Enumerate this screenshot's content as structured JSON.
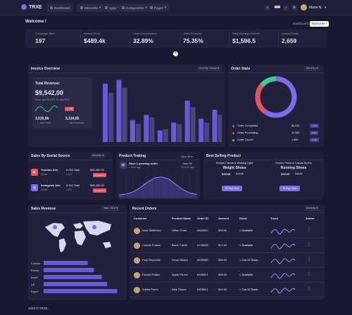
{
  "app": {
    "logo": "TRXE"
  },
  "nav": [
    {
      "label": "Dashboard"
    },
    {
      "label": "Elements"
    },
    {
      "label": "Apps"
    },
    {
      "label": "Components"
    },
    {
      "label": "Pages"
    }
  ],
  "user": {
    "name": "Marie N."
  },
  "welcome": {
    "title": "Welcome !",
    "breadcrumbs": [
      "Dashboard",
      "Welcome !"
    ]
  },
  "stats": [
    {
      "label": "Campaign Sent",
      "value": "197"
    },
    {
      "label": "Annual Profit",
      "value": "$489.4k"
    },
    {
      "label": "Lead Conversation",
      "value": "32.89%"
    },
    {
      "label": "Sales Forecast",
      "value": "75.35%"
    },
    {
      "label": "Daily Average Income",
      "value": "$1,596.5"
    },
    {
      "label": "Annual Deals",
      "value": "2,659"
    }
  ],
  "invoice": {
    "title": "Invoice Overview",
    "filter": "Sort By: Yearly",
    "revenue_label": "Total Revenue:",
    "revenue_value": "$9,542,00",
    "revenue_sub": "From Jan 20,2022 To July,2022",
    "badge": "-1.1%",
    "net_value": "3,526,56",
    "net_label": "Net Profit",
    "rev2_value": "5,324,85",
    "rev2_label": "Net Revenue",
    "colors": {
      "primary": "#6b5ad6",
      "secondary": "#4a437c"
    },
    "chart_data": {
      "type": "bar",
      "categories": [
        "1",
        "2",
        "3",
        "4",
        "5",
        "6",
        "7",
        "8",
        "9"
      ],
      "series": [
        {
          "values": [
            90,
            96,
            34,
            42,
            18,
            30,
            64,
            36,
            50
          ]
        },
        {
          "values": [
            76,
            84,
            28,
            38,
            20,
            28,
            54,
            30,
            42
          ]
        }
      ],
      "ylim": [
        0,
        100
      ]
    }
  },
  "order_stats": {
    "title": "Order Stats",
    "filter": "Monthly",
    "chart_data": {
      "type": "pie",
      "categories": [
        "Order Completed",
        "Order Processing",
        "Order Cancel"
      ],
      "values": [
        56230,
        12560,
        1866
      ],
      "colors": [
        "#7b6ce8",
        "#e05563",
        "#3ecf8e"
      ]
    },
    "rows": [
      {
        "label": "Order Completed",
        "value": "56,230",
        "badge": "+1.6%",
        "color": "#7b6ce8"
      },
      {
        "label": "Order Processing",
        "value": "12,560",
        "badge": "-0.8%",
        "color": "#e05563"
      },
      {
        "label": "Order Cancel",
        "value": "1,866",
        "badge": "+2.4%",
        "color": "#3ecf8e"
      }
    ]
  },
  "social": {
    "title": "Sales By Social Source",
    "filter": "Monthly",
    "rows": [
      {
        "name": "Youtube Ads",
        "sub": "Clicks",
        "sales": "6,065 Sale",
        "sales_sub": "1.1%",
        "amount": "$90,456.00",
        "badge": "Completed",
        "color": "#e05563"
      },
      {
        "name": "Instagram Ads",
        "sub": "Clicks",
        "sales": "8,532 Sale",
        "sales_sub": "1.2%",
        "amount": "$56,458.00",
        "badge": "Completed",
        "color": "#7b6ce8"
      }
    ]
  },
  "tracking": {
    "title": "Product Traking",
    "filter": "View All",
    "item_title": "Have 1 pending order.",
    "item_time": "1 hour ago",
    "item_date": "Nov 04",
    "item_time2": "12 hour ago",
    "chart_data": {
      "type": "line",
      "x": [
        1,
        2,
        3,
        4,
        5,
        6,
        7,
        8,
        9,
        10,
        11,
        12
      ],
      "values": [
        6,
        8,
        12,
        20,
        30,
        38,
        40,
        36,
        26,
        16,
        10,
        7
      ],
      "ylim": [
        0,
        50
      ]
    }
  },
  "best": {
    "title": "Best Selling Product",
    "items": [
      {
        "name_1": "Reptan Casual & Walking Light",
        "name_2": "Weight Shoes",
        "price": "$35.99",
        "old": "$49.99",
        "button": "Buy Now"
      },
      {
        "name_1": "Cosmo Puma & Casual Sports",
        "name_2": "Running Shoes",
        "price": "$29.99",
        "old": "$45.99",
        "button": "Buy Now"
      }
    ]
  },
  "revenue": {
    "title": "Sales Revenue",
    "filter": "Year 2022",
    "chart_data": {
      "type": "bar",
      "categories": [
        "Canada",
        "Russia",
        "Israel",
        "US",
        "Egypt"
      ],
      "values": [
        57,
        65,
        75,
        82,
        95
      ],
      "xlim": [
        0,
        100
      ]
    }
  },
  "orders": {
    "title": "Recent Orders",
    "filter": "Monthly",
    "headers": [
      "Customer",
      "Product Name",
      "Order ID",
      "Amount",
      "Stock",
      "Trend",
      "Action"
    ],
    "rows": [
      {
        "customer": "Neal Matthews",
        "product": "Office Chair",
        "id": "#526552",
        "amount": "$35.00",
        "stock": "Available",
        "stock_color": "#3ecf8e"
      },
      {
        "customer": "Connie Franco",
        "product": "Black T-shirt",
        "id": "#746648",
        "amount": "$21.00",
        "stock": "Available",
        "stock_color": "#3ecf8e"
      },
      {
        "customer": "Paul Reynolds",
        "product": "Smart Watch",
        "id": "#526989",
        "amount": "$89.00",
        "stock": "Out Of Stock",
        "stock_color": "#e05563"
      },
      {
        "customer": "Ronald Patten",
        "product": "Apple Phone",
        "id": "#326521",
        "amount": "$85.00",
        "stock": "Available",
        "stock_color": "#3ecf8e"
      },
      {
        "customer": "Adella Perez",
        "product": "Nike Shoes",
        "id": "#326521",
        "amount": "$21.00",
        "stock": "Out Of Stock",
        "stock_color": "#e05563"
      }
    ]
  },
  "footer": {
    "text": "2023 © TRXE."
  }
}
